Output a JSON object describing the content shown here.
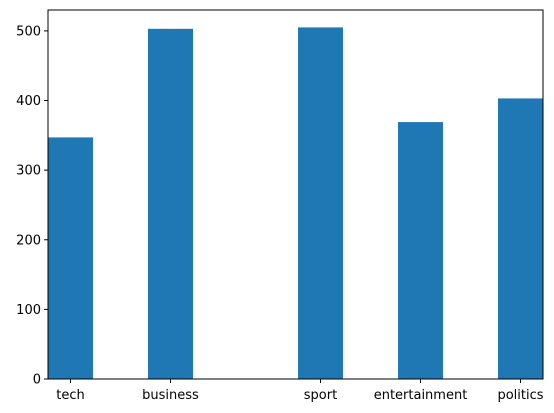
{
  "chart_data": {
    "type": "bar",
    "title": "",
    "xlabel": "",
    "ylabel": "",
    "categories": [
      "tech",
      "business",
      "sport",
      "entertainment",
      "politics"
    ],
    "values": [
      347,
      503,
      505,
      369,
      403
    ],
    "category_positions": [
      0,
      1,
      2.5,
      3.5,
      4.5
    ],
    "bar_width": 0.45,
    "xlim": [
      -0.225,
      4.725
    ],
    "ylim": [
      0,
      530
    ],
    "yticks": [
      0,
      100,
      200,
      300,
      400,
      500
    ],
    "ytick_labels": [
      "0",
      "100",
      "200",
      "300",
      "400",
      "500"
    ],
    "grid": false,
    "legend": "none",
    "colors": {
      "bar": "#1f77b4",
      "axes": "#000000",
      "background": "#ffffff"
    }
  }
}
